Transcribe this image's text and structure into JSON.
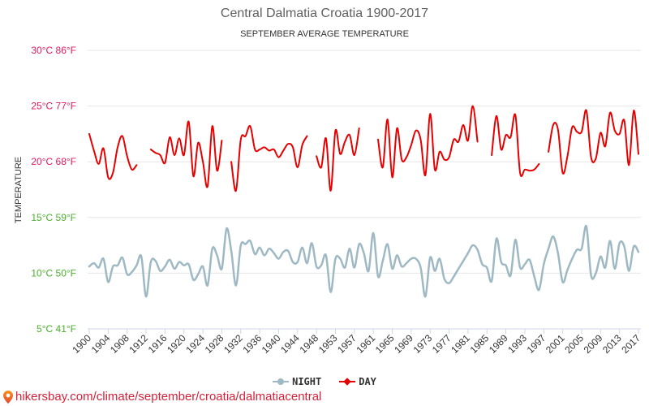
{
  "footer": {
    "icon": "location-pin-icon",
    "text": "hikersbay.com/climate/september/croatia/dalmatiacentral",
    "color": "#d8203a"
  },
  "chart_data": {
    "type": "line",
    "title": "Central Dalmatia Croatia 1900-2017",
    "subtitle": "SEPTEMBER AVERAGE TEMPERATURE",
    "xlabel": "",
    "ylabel": "TEMPERATURE",
    "ylim": [
      5,
      30
    ],
    "y_ticks": [
      {
        "value": 30,
        "label": "30°C 86°F",
        "color": "#e3175f"
      },
      {
        "value": 25,
        "label": "25°C 77°F",
        "color": "#e3175f"
      },
      {
        "value": 20,
        "label": "20°C 68°F",
        "color": "#e3175f"
      },
      {
        "value": 15,
        "label": "15°C 59°F",
        "color": "#4aaf2c"
      },
      {
        "value": 10,
        "label": "10°C 50°F",
        "color": "#4aaf2c"
      },
      {
        "value": 5,
        "label": "5°C 41°F",
        "color": "#4aaf2c"
      }
    ],
    "x_tick_labels": [
      "1900",
      "1904",
      "1908",
      "1912",
      "1916",
      "1920",
      "1924",
      "1928",
      "1932",
      "1936",
      "1940",
      "1944",
      "1948",
      "1953",
      "1957",
      "1961",
      "1965",
      "1969",
      "1973",
      "1977",
      "1981",
      "1985",
      "1989",
      "1993",
      "1997",
      "2001",
      "2005",
      "2009",
      "2013",
      "2017"
    ],
    "x": [
      1900,
      1901,
      1902,
      1903,
      1904,
      1905,
      1906,
      1907,
      1908,
      1909,
      1910,
      1911,
      1912,
      1913,
      1914,
      1915,
      1916,
      1917,
      1918,
      1919,
      1920,
      1921,
      1922,
      1923,
      1924,
      1925,
      1926,
      1927,
      1928,
      1929,
      1930,
      1931,
      1932,
      1933,
      1934,
      1935,
      1936,
      1937,
      1938,
      1939,
      1940,
      1941,
      1942,
      1943,
      1944,
      1945,
      1946,
      1947,
      1948,
      1949,
      1950,
      1951,
      1953,
      1954,
      1955,
      1956,
      1957,
      1958,
      1959,
      1960,
      1961,
      1962,
      1963,
      1964,
      1965,
      1966,
      1967,
      1968,
      1969,
      1970,
      1971,
      1972,
      1973,
      1974,
      1975,
      1976,
      1977,
      1978,
      1979,
      1980,
      1981,
      1982,
      1983,
      1984,
      1985,
      1986,
      1987,
      1988,
      1989,
      1990,
      1991,
      1992,
      1993,
      1994,
      1995,
      1996,
      1997,
      1998,
      1999,
      2000,
      2001,
      2002,
      2003,
      2004,
      2005,
      2006,
      2007,
      2008,
      2009,
      2010,
      2011,
      2012,
      2013,
      2014,
      2015,
      2016,
      2017
    ],
    "series": [
      {
        "name": "NIGHT",
        "color": "#9fb9c4",
        "marker": "circle",
        "values": [
          10.6,
          10.9,
          10.5,
          11.3,
          9.2,
          10.6,
          10.7,
          11.4,
          9.9,
          10.1,
          10.7,
          11.5,
          7.9,
          11.0,
          11.1,
          10.2,
          10.6,
          11.2,
          10.4,
          11.0,
          10.7,
          10.8,
          9.4,
          9.9,
          10.6,
          8.9,
          12.2,
          11.6,
          10.4,
          14.0,
          12.0,
          8.9,
          12.5,
          12.6,
          12.9,
          11.7,
          12.3,
          11.6,
          12.2,
          11.8,
          11.3,
          11.9,
          12.0,
          11.0,
          11.0,
          12.3,
          10.9,
          12.7,
          10.6,
          10.7,
          11.6,
          8.3,
          11.3,
          11.3,
          10.5,
          12.2,
          10.5,
          12.6,
          11.8,
          10.2,
          13.6,
          9.7,
          11.1,
          12.6,
          10.4,
          11.6,
          10.6,
          10.9,
          11.3,
          11.3,
          10.5,
          7.9,
          11.4,
          10.2,
          11.3,
          9.5,
          9.1,
          9.7,
          10.4,
          11.1,
          11.8,
          12.5,
          12.1,
          10.8,
          10.5,
          9.3,
          13.1,
          11.0,
          10.7,
          9.8,
          13.0,
          10.5,
          10.8,
          11.2,
          9.7,
          8.5,
          10.8,
          12.2,
          13.3,
          11.8,
          9.2,
          10.3,
          11.3,
          12.1,
          12.2,
          14.2,
          9.8,
          10.0,
          11.5,
          10.5,
          12.9,
          10.4,
          12.7,
          12.4,
          10.2,
          12.4,
          11.9
        ]
      },
      {
        "name": "DAY",
        "color": "#e60000",
        "marker": "diamond",
        "values": [
          22.5,
          21.0,
          19.8,
          21.2,
          18.6,
          19.0,
          21.3,
          22.3,
          20.5,
          19.3,
          19.7,
          null,
          null,
          21.1,
          20.8,
          20.6,
          19.9,
          22.2,
          20.6,
          22.1,
          20.6,
          23.6,
          18.7,
          21.7,
          20.0,
          17.8,
          23.2,
          19.2,
          21.9,
          null,
          20.0,
          17.4,
          22.0,
          22.3,
          23.2,
          21.1,
          21.1,
          21.3,
          21.0,
          21.1,
          20.4,
          21.0,
          21.6,
          21.3,
          19.5,
          21.5,
          22.3,
          null,
          20.5,
          19.5,
          22.1,
          17.4,
          22.8,
          20.7,
          21.8,
          22.4,
          20.6,
          23.0,
          null,
          null,
          null,
          22.0,
          19.5,
          23.8,
          18.6,
          23.0,
          20.2,
          20.4,
          21.5,
          22.8,
          22.0,
          18.8,
          24.3,
          19.3,
          20.9,
          20.2,
          20.4,
          22.0,
          21.8,
          23.3,
          21.9,
          25.0,
          21.8,
          null,
          null,
          20.6,
          24.1,
          21.1,
          22.4,
          22.2,
          24.2,
          19.0,
          19.3,
          19.2,
          19.3,
          19.8,
          null,
          20.9,
          23.3,
          22.9,
          19.0,
          20.5,
          23.1,
          22.7,
          22.7,
          24.6,
          20.4,
          20.3,
          22.6,
          21.4,
          24.4,
          22.8,
          22.5,
          23.7,
          19.7,
          24.6,
          20.7
        ]
      }
    ],
    "smooth": true,
    "grid": "horizontal",
    "legend": "bottom-center"
  }
}
